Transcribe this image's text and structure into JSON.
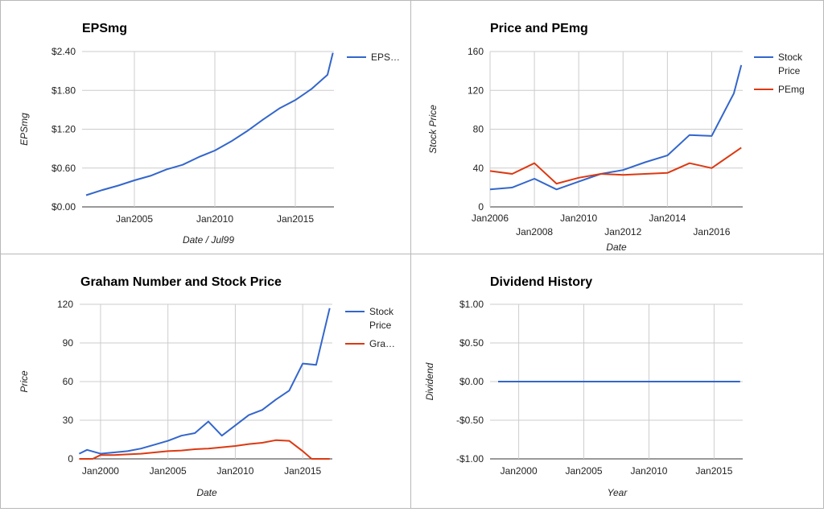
{
  "colors": {
    "blue": "#3366cc",
    "red": "#dc3912"
  },
  "chart_data": [
    {
      "type": "line",
      "title": "EPSmg",
      "xlabel": "Date / Jul99",
      "ylabel": "EPSmg",
      "x_ticks": [
        "Jan2005",
        "Jan2010",
        "Jan2015"
      ],
      "y_ticks": [
        "$0.00",
        "$0.60",
        "$1.20",
        "$1.80",
        "$2.40"
      ],
      "ylim": [
        0,
        2.4
      ],
      "series": [
        {
          "name": "EPS…",
          "color": "#3366cc",
          "points": [
            [
              "2002-01",
              0.18
            ],
            [
              "2003-01",
              0.26
            ],
            [
              "2004-01",
              0.33
            ],
            [
              "2005-01",
              0.41
            ],
            [
              "2006-01",
              0.48
            ],
            [
              "2007-01",
              0.58
            ],
            [
              "2008-01",
              0.65
            ],
            [
              "2009-01",
              0.77
            ],
            [
              "2010-01",
              0.87
            ],
            [
              "2011-01",
              1.01
            ],
            [
              "2012-01",
              1.17
            ],
            [
              "2013-01",
              1.35
            ],
            [
              "2014-01",
              1.52
            ],
            [
              "2015-01",
              1.65
            ],
            [
              "2016-01",
              1.82
            ],
            [
              "2017-01",
              2.04
            ],
            [
              "2017-05",
              2.38
            ]
          ]
        }
      ]
    },
    {
      "type": "line",
      "title": "Price and PEmg",
      "xlabel": "Date",
      "ylabel": "Stock Price",
      "x_ticks": [
        "Jan2006",
        "Jan2008",
        "Jan2010",
        "Jan2012",
        "Jan2014",
        "Jan2016"
      ],
      "y_ticks": [
        "0",
        "40",
        "80",
        "120",
        "160"
      ],
      "ylim": [
        0,
        160
      ],
      "series": [
        {
          "name": "Stock Price",
          "color": "#3366cc",
          "points": [
            [
              "2006-01",
              18
            ],
            [
              "2007-01",
              20
            ],
            [
              "2008-01",
              29
            ],
            [
              "2009-01",
              18
            ],
            [
              "2010-01",
              26
            ],
            [
              "2011-01",
              34
            ],
            [
              "2012-01",
              38
            ],
            [
              "2013-01",
              46
            ],
            [
              "2014-01",
              53
            ],
            [
              "2015-01",
              74
            ],
            [
              "2016-01",
              73
            ],
            [
              "2017-01",
              117
            ],
            [
              "2017-05",
              146
            ]
          ]
        },
        {
          "name": "PEmg",
          "color": "#dc3912",
          "points": [
            [
              "2006-01",
              37
            ],
            [
              "2007-01",
              34
            ],
            [
              "2008-01",
              45
            ],
            [
              "2009-01",
              24
            ],
            [
              "2010-01",
              30
            ],
            [
              "2011-01",
              34
            ],
            [
              "2012-01",
              33
            ],
            [
              "2013-01",
              34
            ],
            [
              "2014-01",
              35
            ],
            [
              "2015-01",
              45
            ],
            [
              "2016-01",
              40
            ],
            [
              "2017-05",
              61
            ]
          ]
        }
      ]
    },
    {
      "type": "line",
      "title": "Graham Number and Stock Price",
      "xlabel": "Date",
      "ylabel": "Price",
      "x_ticks": [
        "Jan2000",
        "Jan2005",
        "Jan2010",
        "Jan2015"
      ],
      "y_ticks": [
        "0",
        "30",
        "60",
        "90",
        "120"
      ],
      "ylim": [
        0,
        120
      ],
      "series": [
        {
          "name": "Stock Price",
          "color": "#3366cc",
          "points": [
            [
              "1998-06",
              4
            ],
            [
              "1999-01",
              7
            ],
            [
              "2000-01",
              4
            ],
            [
              "2001-01",
              5
            ],
            [
              "2002-01",
              6
            ],
            [
              "2003-01",
              8
            ],
            [
              "2004-01",
              11
            ],
            [
              "2005-01",
              14
            ],
            [
              "2006-01",
              18
            ],
            [
              "2007-01",
              20
            ],
            [
              "2008-01",
              29
            ],
            [
              "2009-01",
              18
            ],
            [
              "2010-01",
              26
            ],
            [
              "2011-01",
              34
            ],
            [
              "2012-01",
              38
            ],
            [
              "2013-01",
              46
            ],
            [
              "2014-01",
              53
            ],
            [
              "2015-01",
              74
            ],
            [
              "2016-01",
              73
            ],
            [
              "2017-01",
              117
            ]
          ]
        },
        {
          "name": "Gra…",
          "color": "#dc3912",
          "points": [
            [
              "1998-06",
              0
            ],
            [
              "1999-06",
              0
            ],
            [
              "2000-01",
              3
            ],
            [
              "2001-01",
              3
            ],
            [
              "2002-01",
              3.5
            ],
            [
              "2003-01",
              4
            ],
            [
              "2004-01",
              5
            ],
            [
              "2005-01",
              6
            ],
            [
              "2006-01",
              6.5
            ],
            [
              "2007-01",
              7.5
            ],
            [
              "2008-01",
              8
            ],
            [
              "2009-01",
              9
            ],
            [
              "2010-01",
              10
            ],
            [
              "2011-01",
              11.5
            ],
            [
              "2012-01",
              12.5
            ],
            [
              "2013-01",
              14.5
            ],
            [
              "2014-01",
              14
            ],
            [
              "2015-01",
              6
            ],
            [
              "2015-09",
              0
            ],
            [
              "2017-01",
              0
            ]
          ]
        }
      ]
    },
    {
      "type": "line",
      "title": "Dividend History",
      "xlabel": "Year",
      "ylabel": "Dividend",
      "x_ticks": [
        "Jan2000",
        "Jan2005",
        "Jan2010",
        "Jan2015"
      ],
      "y_ticks": [
        "-$1.00",
        "-$0.50",
        "$0.00",
        "$0.50",
        "$1.00"
      ],
      "ylim": [
        -1,
        1
      ],
      "series": [
        {
          "name": "",
          "color": "#3366cc",
          "points": [
            [
              "1998-06",
              0
            ],
            [
              "2017-01",
              0
            ]
          ]
        }
      ]
    }
  ]
}
